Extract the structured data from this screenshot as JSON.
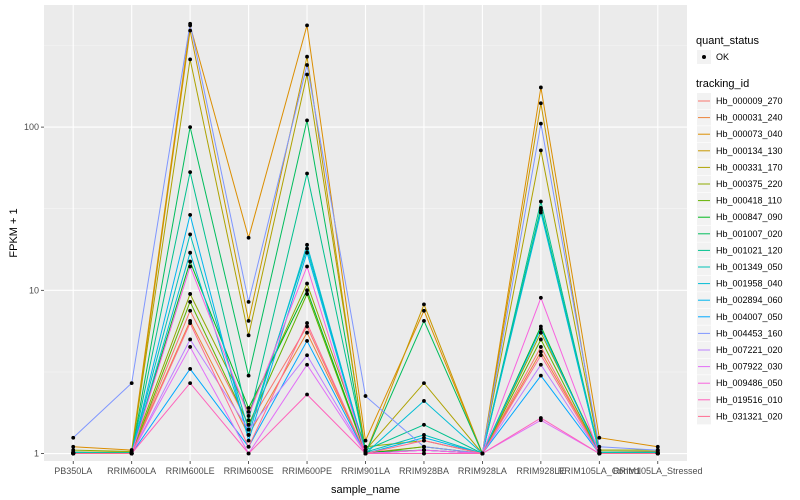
{
  "chart_data": {
    "type": "line",
    "xlabel": "sample_name",
    "ylabel": "FPKM + 1",
    "y_scale": "log10",
    "ylim": [
      0.9,
      560
    ],
    "y_ticks": [
      1,
      10,
      100
    ],
    "y_tick_labels": [
      "1",
      "10",
      "100"
    ],
    "grid": true,
    "legend_position": "right",
    "categories": [
      "PB350LA",
      "RRIM600LA",
      "RRIM600LE",
      "RRIM600SE",
      "RRIM600PE",
      "RRIM901LA",
      "RRIM928BA",
      "RRIM928LA",
      "RRIM928LE",
      "RRIM105LA_Control",
      "RRIM105LA_Stressed"
    ],
    "quant_legend": {
      "title": "quant_status",
      "entries": [
        "OK"
      ]
    },
    "legend_title": "tracking_id",
    "series": [
      {
        "name": "Hb_000009_270",
        "color": "#F8766D",
        "values": [
          1.0,
          1.0,
          7.5,
          1.5,
          6.0,
          1.0,
          1.05,
          1.0,
          4.5,
          1.0,
          1.0
        ]
      },
      {
        "name": "Hb_000031_240",
        "color": "#EC8239",
        "values": [
          1.02,
          1.01,
          6.5,
          1.3,
          5.5,
          1.01,
          1.1,
          1.0,
          4.2,
          1.02,
          1.03
        ]
      },
      {
        "name": "Hb_000073_040",
        "color": "#DB8E00",
        "values": [
          1.1,
          1.05,
          420,
          21,
          420,
          1.2,
          7.5,
          1.0,
          175,
          1.25,
          1.1
        ]
      },
      {
        "name": "Hb_000134_130",
        "color": "#C79800",
        "values": [
          1.0,
          1.0,
          390,
          6.5,
          270,
          1.0,
          8.2,
          1.0,
          140,
          1.0,
          1.0
        ]
      },
      {
        "name": "Hb_000331_170",
        "color": "#AEA200",
        "values": [
          1.02,
          1.02,
          260,
          5.3,
          210,
          1.05,
          2.7,
          1.0,
          72,
          1.05,
          1.05
        ]
      },
      {
        "name": "Hb_000375_220",
        "color": "#8FAA00",
        "values": [
          1.05,
          1.03,
          9.5,
          1.8,
          11,
          1.1,
          1.2,
          1.0,
          5.5,
          1.05,
          1.05
        ]
      },
      {
        "name": "Hb_000418_110",
        "color": "#64B200",
        "values": [
          1.0,
          1.0,
          8.5,
          1.5,
          9.5,
          1.0,
          1.1,
          1.0,
          5.0,
          1.0,
          1.0
        ]
      },
      {
        "name": "Hb_000847_090",
        "color": "#00B81B",
        "values": [
          1.01,
          1.01,
          15,
          1.9,
          10,
          1.02,
          1.05,
          1.0,
          6.0,
          1.0,
          1.02
        ]
      },
      {
        "name": "Hb_001007_020",
        "color": "#00BD5C",
        "values": [
          1.0,
          1.0,
          100,
          3.0,
          110,
          1.0,
          6.5,
          1.0,
          32,
          1.0,
          1.0
        ]
      },
      {
        "name": "Hb_001021_120",
        "color": "#00C08E",
        "values": [
          1.02,
          1.0,
          53,
          1.6,
          52,
          1.05,
          1.5,
          1.0,
          35,
          1.02,
          1.02
        ]
      },
      {
        "name": "Hb_001349_050",
        "color": "#00C1B7",
        "values": [
          1.01,
          1.01,
          22,
          1.4,
          18,
          1.02,
          1.3,
          1.0,
          31,
          1.01,
          1.01
        ]
      },
      {
        "name": "Hb_001958_040",
        "color": "#00BDD4",
        "values": [
          1.0,
          1.0,
          17,
          1.3,
          19,
          1.0,
          2.1,
          1.0,
          30,
          1.0,
          1.0
        ]
      },
      {
        "name": "Hb_002894_060",
        "color": "#00B5EE",
        "values": [
          1.0,
          1.0,
          29,
          1.2,
          17,
          1.0,
          1.25,
          1.0,
          5.8,
          1.0,
          1.0
        ]
      },
      {
        "name": "Hb_004007_050",
        "color": "#00A7FF",
        "values": [
          1.0,
          1.0,
          3.3,
          1.1,
          4.9,
          1.0,
          1.05,
          1.0,
          3.0,
          1.0,
          1.0
        ]
      },
      {
        "name": "Hb_004453_160",
        "color": "#7F96FF",
        "values": [
          1.25,
          2.7,
          430,
          8.5,
          240,
          2.25,
          1.1,
          1.0,
          105,
          1.1,
          1.05
        ]
      },
      {
        "name": "Hb_007221_020",
        "color": "#BC81FF",
        "values": [
          1.0,
          1.0,
          5.0,
          1.4,
          4.0,
          1.0,
          1.05,
          1.0,
          3.5,
          1.0,
          1.0
        ]
      },
      {
        "name": "Hb_007922_030",
        "color": "#E26EF7",
        "values": [
          1.0,
          1.0,
          4.5,
          1.0,
          3.5,
          1.0,
          1.0,
          1.0,
          1.6,
          1.0,
          1.0
        ]
      },
      {
        "name": "Hb_009486_050",
        "color": "#F863DF",
        "values": [
          1.0,
          1.0,
          14,
          1.7,
          14,
          1.0,
          1.05,
          1.0,
          9.0,
          1.0,
          1.0
        ]
      },
      {
        "name": "Hb_019516_010",
        "color": "#FF62BC",
        "values": [
          1.0,
          1.0,
          2.7,
          1.0,
          2.3,
          1.0,
          1.0,
          1.0,
          1.65,
          1.0,
          1.0
        ]
      },
      {
        "name": "Hb_031321_020",
        "color": "#FF6C91",
        "values": [
          1.0,
          1.0,
          6.3,
          1.1,
          6.3,
          1.0,
          1.2,
          1.0,
          4.0,
          1.0,
          1.0
        ]
      }
    ]
  }
}
